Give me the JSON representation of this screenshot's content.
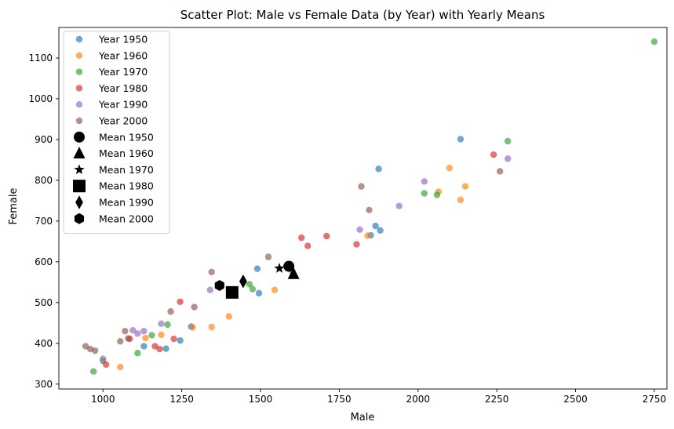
{
  "chart_data": {
    "type": "scatter",
    "title": "Scatter Plot: Male vs Female Data (by Year) with Yearly Means",
    "xlabel": "Male",
    "ylabel": "Female",
    "xlim": [
      860,
      2790
    ],
    "ylim": [
      288,
      1175
    ],
    "xticks": [
      1000,
      1250,
      1500,
      1750,
      2000,
      2250,
      2500,
      2750
    ],
    "yticks": [
      300,
      400,
      500,
      600,
      700,
      800,
      900,
      1000,
      1100
    ],
    "grid": false,
    "legend_position": "top-left",
    "series": [
      {
        "name": "Year 1950",
        "color": "#1f77b4",
        "points": [
          [
            1130,
            393
          ],
          [
            1200,
            387
          ],
          [
            1245,
            407
          ],
          [
            1280,
            441
          ],
          [
            1490,
            583
          ],
          [
            1495,
            523
          ],
          [
            1600,
            578
          ],
          [
            1850,
            665
          ],
          [
            1865,
            688
          ],
          [
            1875,
            828
          ],
          [
            1880,
            677
          ],
          [
            2135,
            901
          ]
        ]
      },
      {
        "name": "Year 1960",
        "color": "#ff7f0e",
        "points": [
          [
            1055,
            342
          ],
          [
            1135,
            413
          ],
          [
            1185,
            421
          ],
          [
            1285,
            439
          ],
          [
            1345,
            440
          ],
          [
            1400,
            466
          ],
          [
            1545,
            531
          ],
          [
            1840,
            664
          ],
          [
            2065,
            772
          ],
          [
            2100,
            830
          ],
          [
            2135,
            752
          ],
          [
            2150,
            785
          ]
        ]
      },
      {
        "name": "Year 1970",
        "color": "#2ca02c",
        "points": [
          [
            970,
            331
          ],
          [
            1000,
            357
          ],
          [
            1110,
            376
          ],
          [
            1155,
            420
          ],
          [
            1205,
            446
          ],
          [
            1465,
            545
          ],
          [
            1475,
            533
          ],
          [
            2020,
            768
          ],
          [
            2060,
            764
          ],
          [
            2285,
            896
          ],
          [
            2750,
            1140
          ]
        ]
      },
      {
        "name": "Year 1980",
        "color": "#d62728",
        "points": [
          [
            1010,
            348
          ],
          [
            1085,
            411
          ],
          [
            1165,
            393
          ],
          [
            1180,
            386
          ],
          [
            1225,
            411
          ],
          [
            1245,
            502
          ],
          [
            1630,
            659
          ],
          [
            1650,
            639
          ],
          [
            1710,
            663
          ],
          [
            1805,
            643
          ],
          [
            2240,
            863
          ]
        ]
      },
      {
        "name": "Year 1990",
        "color": "#9467bd",
        "points": [
          [
            1000,
            362
          ],
          [
            1095,
            432
          ],
          [
            1110,
            424
          ],
          [
            1130,
            430
          ],
          [
            1185,
            448
          ],
          [
            1340,
            531
          ],
          [
            1375,
            545
          ],
          [
            1815,
            679
          ],
          [
            1940,
            737
          ],
          [
            2020,
            797
          ],
          [
            2285,
            853
          ]
        ]
      },
      {
        "name": "Year 2000",
        "color": "#8c564b",
        "points": [
          [
            945,
            393
          ],
          [
            960,
            386
          ],
          [
            975,
            382
          ],
          [
            1055,
            405
          ],
          [
            1070,
            430
          ],
          [
            1080,
            412
          ],
          [
            1215,
            478
          ],
          [
            1290,
            489
          ],
          [
            1345,
            575
          ],
          [
            1525,
            612
          ],
          [
            1820,
            785
          ],
          [
            1845,
            727
          ],
          [
            2260,
            822
          ]
        ]
      }
    ],
    "means": [
      {
        "name": "Mean 1950",
        "marker": "circle",
        "point": [
          1590,
          589
        ]
      },
      {
        "name": "Mean 1960",
        "marker": "triangle",
        "point": [
          1605,
          570
        ]
      },
      {
        "name": "Mean 1970",
        "marker": "star",
        "point": [
          1560,
          584
        ]
      },
      {
        "name": "Mean 1980",
        "marker": "square",
        "point": [
          1410,
          525
        ]
      },
      {
        "name": "Mean 1990",
        "marker": "diamond",
        "point": [
          1445,
          552
        ]
      },
      {
        "name": "Mean 2000",
        "marker": "hexagon",
        "point": [
          1370,
          542
        ]
      }
    ]
  }
}
